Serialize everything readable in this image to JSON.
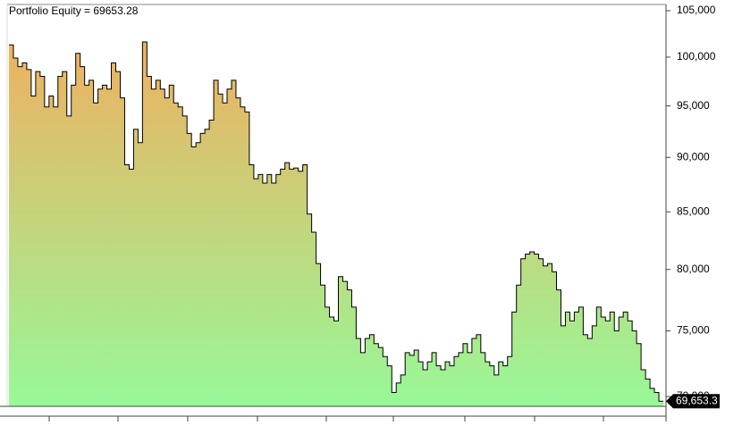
{
  "chart_data": {
    "type": "step-area",
    "title": "Portfolio Equity = 69653.28",
    "log_scale": true,
    "line_color": "#000000",
    "fill_top_color": "#f0b060",
    "fill_bottom_color": "#98f898",
    "ylim": [
      69282,
      105690
    ],
    "yticks": [
      {
        "value": 70000,
        "label": "70,000"
      },
      {
        "value": 75000,
        "label": "75,000"
      },
      {
        "value": 80000,
        "label": "80,000"
      },
      {
        "value": 85000,
        "label": "85,000"
      },
      {
        "value": 90000,
        "label": "90,000"
      },
      {
        "value": 95000,
        "label": "95,000"
      },
      {
        "value": 100000,
        "label": "100,000"
      },
      {
        "value": 105000,
        "label": "105,000"
      }
    ],
    "values": [
      101300,
      99900,
      99000,
      99400,
      98700,
      96000,
      98500,
      98000,
      94900,
      96000,
      94900,
      98000,
      98500,
      94000,
      97100,
      100400,
      99000,
      97100,
      97600,
      95300,
      96700,
      97100,
      96700,
      99400,
      98500,
      95800,
      89300,
      88900,
      92700,
      91400,
      101600,
      98000,
      96700,
      97600,
      96700,
      95800,
      97100,
      95300,
      94900,
      94000,
      92300,
      91000,
      91400,
      92300,
      92700,
      93600,
      97600,
      96200,
      95300,
      96700,
      97600,
      95800,
      94900,
      94400,
      89300,
      88000,
      88400,
      87600,
      88400,
      87600,
      88400,
      88900,
      89500,
      88900,
      89000,
      88700,
      89300,
      84800,
      83200,
      80500,
      78700,
      76900,
      76100,
      75800,
      79400,
      79000,
      78300,
      76900,
      74400,
      73300,
      74400,
      74700,
      74000,
      73700,
      73000,
      72300,
      70300,
      71000,
      71600,
      73300,
      73100,
      73500,
      72600,
      72000,
      72600,
      73300,
      72300,
      72000,
      72600,
      72300,
      73000,
      73300,
      74000,
      73300,
      74400,
      74700,
      73300,
      72600,
      72300,
      71600,
      72600,
      72300,
      73000,
      76500,
      78700,
      80900,
      81300,
      81500,
      81300,
      80900,
      80300,
      80500,
      79800,
      78300,
      75400,
      76500,
      75800,
      76500,
      76900,
      74700,
      74400,
      75400,
      76900,
      76100,
      75800,
      76500,
      75000,
      76100,
      76500,
      75800,
      75000,
      74000,
      72000,
      71300,
      70600,
      70300,
      69653.28
    ],
    "current_value": {
      "value": 69653.28,
      "label": "69,653.3"
    }
  }
}
